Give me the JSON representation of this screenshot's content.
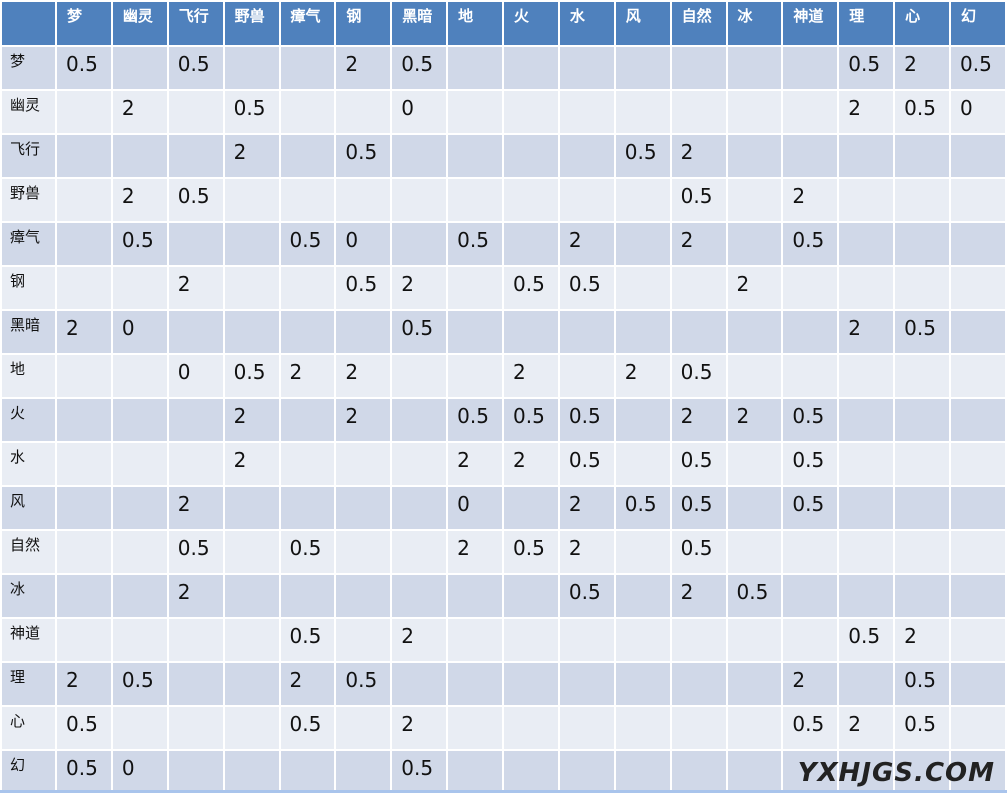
{
  "columns": [
    "梦",
    "幽灵",
    "飞行",
    "野兽",
    "瘴气",
    "钢",
    "黑暗",
    "地",
    "火",
    "水",
    "风",
    "自然",
    "冰",
    "神道",
    "理",
    "心",
    "幻"
  ],
  "rows": [
    {
      "label": "梦",
      "cells": [
        "0.5",
        "",
        "0.5",
        "",
        "",
        "2",
        "0.5",
        "",
        "",
        "",
        "",
        "",
        "",
        "",
        "0.5",
        "2",
        "0.5"
      ]
    },
    {
      "label": "幽灵",
      "cells": [
        "",
        "2",
        "",
        "0.5",
        "",
        "",
        "0",
        "",
        "",
        "",
        "",
        "",
        "",
        "",
        "2",
        "0.5",
        "0"
      ]
    },
    {
      "label": "飞行",
      "cells": [
        "",
        "",
        "",
        "2",
        "",
        "0.5",
        "",
        "",
        "",
        "",
        "0.5",
        "2",
        "",
        "",
        "",
        "",
        ""
      ]
    },
    {
      "label": "野兽",
      "cells": [
        "",
        "2",
        "0.5",
        "",
        "",
        "",
        "",
        "",
        "",
        "",
        "",
        "0.5",
        "",
        "2",
        "",
        "",
        ""
      ]
    },
    {
      "label": "瘴气",
      "cells": [
        "",
        "0.5",
        "",
        "",
        "0.5",
        "0",
        "",
        "0.5",
        "",
        "2",
        "",
        "2",
        "",
        "0.5",
        "",
        "",
        ""
      ]
    },
    {
      "label": "钢",
      "cells": [
        "",
        "",
        "2",
        "",
        "",
        "0.5",
        "2",
        "",
        "0.5",
        "0.5",
        "",
        "",
        "2",
        "",
        "",
        "",
        ""
      ]
    },
    {
      "label": "黑暗",
      "cells": [
        "2",
        "0",
        "",
        "",
        "",
        "",
        "0.5",
        "",
        "",
        "",
        "",
        "",
        "",
        "",
        "2",
        "0.5",
        ""
      ]
    },
    {
      "label": "地",
      "cells": [
        "",
        "",
        "0",
        "0.5",
        "2",
        "2",
        "",
        "",
        "2",
        "",
        "2",
        "0.5",
        "",
        "",
        "",
        "",
        ""
      ]
    },
    {
      "label": "火",
      "cells": [
        "",
        "",
        "",
        "2",
        "",
        "2",
        "",
        "0.5",
        "0.5",
        "0.5",
        "",
        "2",
        "2",
        "0.5",
        "",
        "",
        ""
      ]
    },
    {
      "label": "水",
      "cells": [
        "",
        "",
        "",
        "2",
        "",
        "",
        "",
        "2",
        "2",
        "0.5",
        "",
        "0.5",
        "",
        "0.5",
        "",
        "",
        ""
      ]
    },
    {
      "label": "风",
      "cells": [
        "",
        "",
        "2",
        "",
        "",
        "",
        "",
        "0",
        "",
        "2",
        "0.5",
        "0.5",
        "",
        "0.5",
        "",
        "",
        ""
      ]
    },
    {
      "label": "自然",
      "cells": [
        "",
        "",
        "0.5",
        "",
        "0.5",
        "",
        "",
        "2",
        "0.5",
        "2",
        "",
        "0.5",
        "",
        "",
        "",
        "",
        ""
      ]
    },
    {
      "label": "冰",
      "cells": [
        "",
        "",
        "2",
        "",
        "",
        "",
        "",
        "",
        "",
        "0.5",
        "",
        "2",
        "0.5",
        "",
        "",
        "",
        ""
      ]
    },
    {
      "label": "神道",
      "cells": [
        "",
        "",
        "",
        "",
        "0.5",
        "",
        "2",
        "",
        "",
        "",
        "",
        "",
        "",
        "",
        "0.5",
        "2",
        ""
      ]
    },
    {
      "label": "理",
      "cells": [
        "2",
        "0.5",
        "",
        "",
        "2",
        "0.5",
        "",
        "",
        "",
        "",
        "",
        "",
        "",
        "2",
        "",
        "0.5",
        ""
      ]
    },
    {
      "label": "心",
      "cells": [
        "0.5",
        "",
        "",
        "",
        "0.5",
        "",
        "2",
        "",
        "",
        "",
        "",
        "",
        "",
        "0.5",
        "2",
        "0.5",
        ""
      ]
    },
    {
      "label": "幻",
      "cells": [
        "0.5",
        "0",
        "",
        "",
        "",
        "",
        "0.5",
        "",
        "",
        "",
        "",
        "",
        "",
        "",
        "",
        "",
        ""
      ]
    }
  ],
  "watermark": "YXHJGS.COM",
  "colors": {
    "header": "#4f81bd",
    "row_odd": "#d0d8e8",
    "row_even": "#e9edf4"
  }
}
